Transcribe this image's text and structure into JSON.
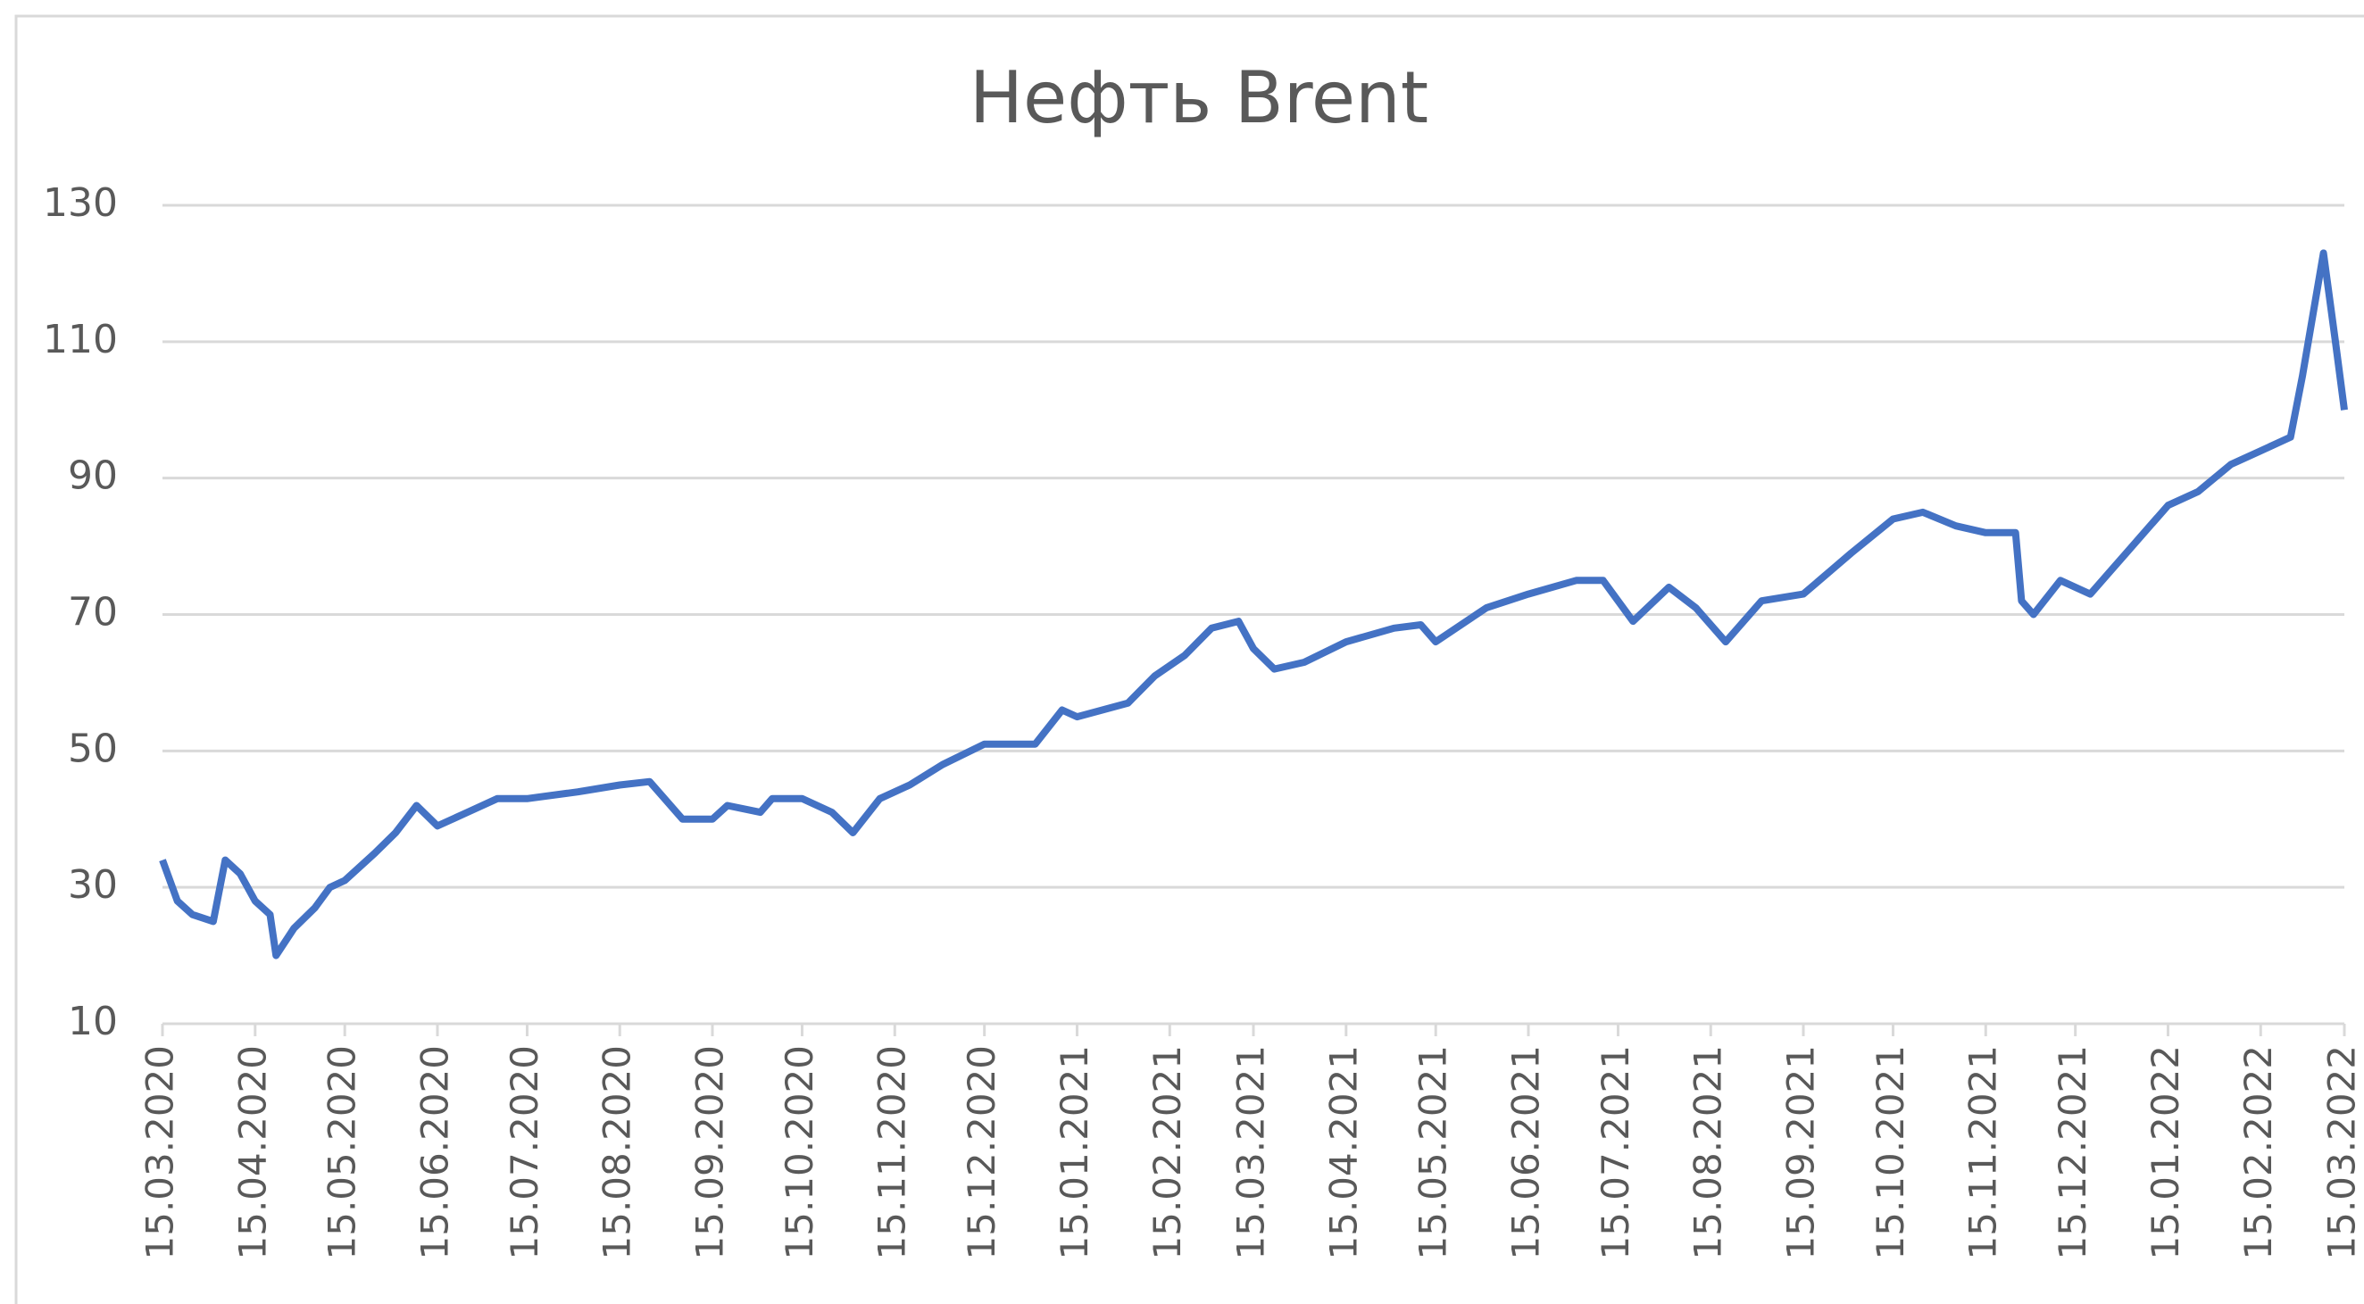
{
  "chart_data": {
    "type": "line",
    "title": "Нефть Brent",
    "x": [
      "15.03.2020",
      "20.03.2020",
      "25.03.2020",
      "01.04.2020",
      "05.04.2020",
      "10.04.2020",
      "15.04.2020",
      "20.04.2020",
      "22.04.2020",
      "28.04.2020",
      "05.05.2020",
      "10.05.2020",
      "15.05.2020",
      "25.05.2020",
      "01.06.2020",
      "08.06.2020",
      "15.06.2020",
      "25.06.2020",
      "05.07.2020",
      "15.07.2020",
      "01.08.2020",
      "15.08.2020",
      "25.08.2020",
      "05.09.2020",
      "15.09.2020",
      "20.09.2020",
      "01.10.2020",
      "05.10.2020",
      "15.10.2020",
      "25.10.2020",
      "01.11.2020",
      "10.11.2020",
      "20.11.2020",
      "01.12.2020",
      "15.12.2020",
      "01.01.2021",
      "10.01.2021",
      "15.01.2021",
      "01.02.2021",
      "10.02.2021",
      "20.02.2021",
      "01.03.2021",
      "10.03.2021",
      "15.03.2021",
      "22.03.2021",
      "01.04.2021",
      "15.04.2021",
      "01.05.2021",
      "10.05.2021",
      "15.05.2021",
      "01.06.2021",
      "15.06.2021",
      "01.07.2021",
      "10.07.2021",
      "20.07.2021",
      "01.08.2021",
      "10.08.2021",
      "20.08.2021",
      "01.09.2021",
      "15.09.2021",
      "01.10.2021",
      "15.10.2021",
      "25.10.2021",
      "05.11.2021",
      "15.11.2021",
      "25.11.2021",
      "27.11.2021",
      "01.12.2021",
      "10.12.2021",
      "20.12.2021",
      "01.01.2022",
      "15.01.2022",
      "25.01.2022",
      "05.02.2022",
      "15.02.2022",
      "25.02.2022",
      "01.03.2022",
      "08.03.2022",
      "12.03.2022",
      "15.03.2022"
    ],
    "series": [
      {
        "name": "Brent",
        "color": "#4472c4",
        "values": [
          34,
          28,
          26,
          25,
          34,
          32,
          28,
          26,
          20,
          24,
          27,
          30,
          31,
          35,
          38,
          42,
          39,
          41,
          43,
          43,
          44,
          45,
          45.5,
          40,
          40,
          42,
          41,
          43,
          43,
          41,
          38,
          43,
          45,
          48,
          51,
          51,
          56,
          55,
          57,
          61,
          64,
          68,
          69,
          65,
          62,
          63,
          66,
          68,
          68.5,
          66,
          71,
          73,
          75,
          75,
          69,
          74,
          71,
          66,
          72,
          73,
          79,
          84,
          85,
          83,
          82,
          82,
          72,
          70,
          75,
          73,
          79,
          86,
          88,
          92,
          94,
          96,
          105,
          123,
          110,
          100
        ]
      }
    ],
    "xlim": [
      "15.03.2020",
      "15.03.2022"
    ],
    "xticks": [
      "15.03.2020",
      "15.04.2020",
      "15.05.2020",
      "15.06.2020",
      "15.07.2020",
      "15.08.2020",
      "15.09.2020",
      "15.10.2020",
      "15.11.2020",
      "15.12.2020",
      "15.01.2021",
      "15.02.2021",
      "15.03.2021",
      "15.04.2021",
      "15.05.2021",
      "15.06.2021",
      "15.07.2021",
      "15.08.2021",
      "15.09.2021",
      "15.10.2021",
      "15.11.2021",
      "15.12.2021",
      "15.01.2022",
      "15.02.2022",
      "15.03.2022"
    ],
    "ylim": [
      10,
      130
    ],
    "yticks": [
      10,
      30,
      50,
      70,
      90,
      110,
      130
    ],
    "grid": true
  }
}
